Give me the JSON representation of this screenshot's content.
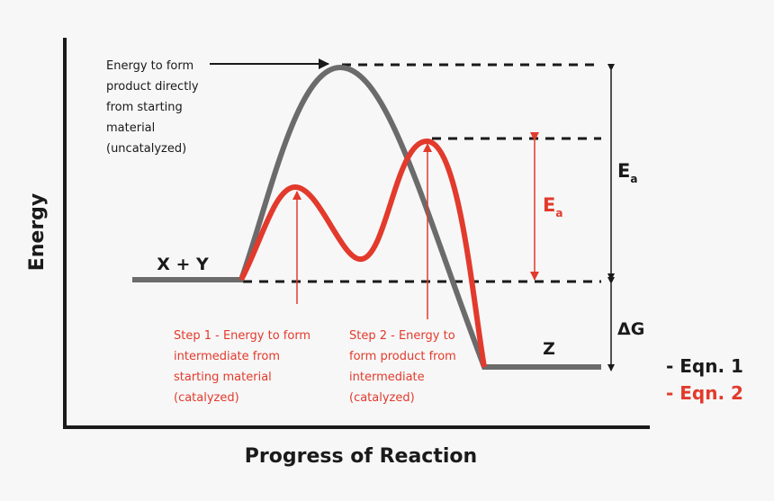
{
  "colors": {
    "background": "#f7f7f7",
    "uncatalyzed": "#6b6b6b",
    "catalyzed": "#e23a2c",
    "text": "#1a1a1a"
  },
  "axes": {
    "y_label": "Energy",
    "x_label": "Progress of Reaction"
  },
  "labels": {
    "reactants": "X + Y",
    "product": "Z",
    "uncatalyzed_note": [
      "Energy to form",
      "product directly",
      "from starting",
      "material",
      "(uncatalyzed)"
    ],
    "step1_note": [
      "Step 1 - Energy to form",
      "intermediate from",
      "starting material",
      "(catalyzed)"
    ],
    "step2_note": [
      "Step 2 - Energy to",
      "form product from",
      "intermediate",
      "(catalyzed)"
    ],
    "ea_black": "E",
    "ea_black_sub": "a",
    "ea_red": "E",
    "ea_red_sub": "a",
    "delta_g": "ΔG"
  },
  "legend": [
    {
      "label": "- Eqn. 1",
      "color": "#1a1a1a"
    },
    {
      "label": "- Eqn. 2",
      "color": "#e23a2c"
    }
  ]
}
